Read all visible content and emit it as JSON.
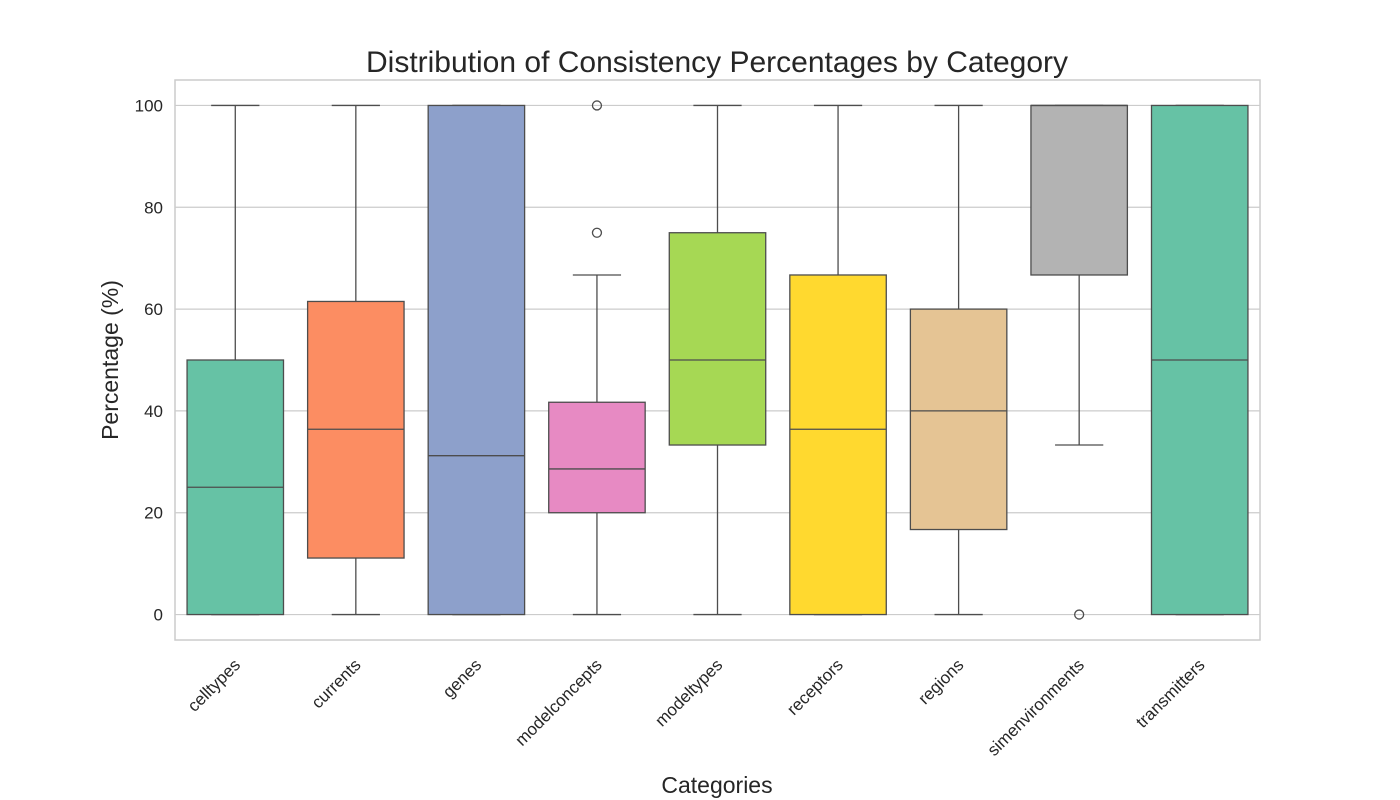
{
  "chart_data": {
    "type": "box",
    "title": "Distribution of Consistency Percentages by Category",
    "xlabel": "Categories",
    "ylabel": "Percentage (%)",
    "ylim": [
      -5,
      105
    ],
    "yticks": [
      0,
      20,
      40,
      60,
      80,
      100
    ],
    "grid": true,
    "categories": [
      "celltypes",
      "currents",
      "genes",
      "modelconcepts",
      "modeltypes",
      "receptors",
      "regions",
      "simenvironments",
      "transmitters"
    ],
    "boxes": [
      {
        "category": "celltypes",
        "whisker_low": 0,
        "q1": 0,
        "median": 25,
        "q3": 50,
        "whisker_high": 100,
        "outliers": [],
        "color": "#66c2a5"
      },
      {
        "category": "currents",
        "whisker_low": 0,
        "q1": 11.1,
        "median": 36.4,
        "q3": 61.5,
        "whisker_high": 100,
        "outliers": [],
        "color": "#fc8d62"
      },
      {
        "category": "genes",
        "whisker_low": 0,
        "q1": 0,
        "median": 31.2,
        "q3": 100,
        "whisker_high": 100,
        "outliers": [],
        "color": "#8da0cb"
      },
      {
        "category": "modelconcepts",
        "whisker_low": 0,
        "q1": 20,
        "median": 28.6,
        "q3": 41.7,
        "whisker_high": 66.7,
        "outliers": [
          75,
          100
        ],
        "color": "#e78ac3"
      },
      {
        "category": "modeltypes",
        "whisker_low": 0,
        "q1": 33.3,
        "median": 50,
        "q3": 75,
        "whisker_high": 100,
        "outliers": [],
        "color": "#a6d854"
      },
      {
        "category": "receptors",
        "whisker_low": 0,
        "q1": 0,
        "median": 36.4,
        "q3": 66.7,
        "whisker_high": 100,
        "outliers": [],
        "color": "#ffd92f"
      },
      {
        "category": "regions",
        "whisker_low": 0,
        "q1": 16.7,
        "median": 40,
        "q3": 60,
        "whisker_high": 100,
        "outliers": [],
        "color": "#e5c494"
      },
      {
        "category": "simenvironments",
        "whisker_low": 33.3,
        "q1": 66.7,
        "median": 100,
        "q3": 100,
        "whisker_high": 100,
        "outliers": [
          0
        ],
        "color": "#b3b3b3"
      },
      {
        "category": "transmitters",
        "whisker_low": 0,
        "q1": 0,
        "median": 50,
        "q3": 100,
        "whisker_high": 100,
        "outliers": [],
        "color": "#66c2a5"
      }
    ]
  }
}
